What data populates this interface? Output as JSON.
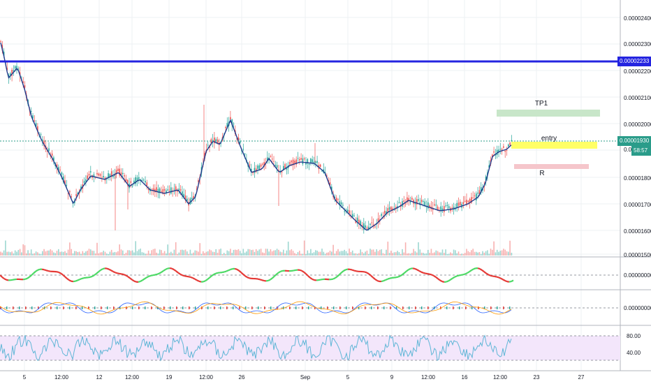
{
  "chart": {
    "price_ticks": [
      "0.00002400",
      "0.00002300",
      "0.00002200",
      "0.00002100",
      "0.00002000",
      "0.00001800",
      "0.00001700",
      "0.00001600",
      "0.00001500"
    ],
    "level_badge": "0.00002233",
    "last_price_badge": "0.00001930",
    "last_price_hidden_tail": "0.0000",
    "countdown": "58:57",
    "time_labels": [
      "5",
      "12:00",
      "12",
      "12:00",
      "19",
      "12:00",
      "26",
      "Sep",
      "5",
      "9",
      "12:00",
      "16",
      "12:00",
      "23",
      "27"
    ],
    "annotations": {
      "tp": "TP1",
      "entry": "entry",
      "risk": "R"
    },
    "ind1_value": "0.00000000",
    "ind2_value": "0.00000000",
    "rsi_ticks": [
      "80.00",
      "40.00"
    ]
  },
  "colors": {
    "level_line": "#2424e0",
    "ma_line": "#1f3b8c",
    "up_candle": "#26a69a",
    "down_candle": "#ef5350",
    "tp_zone": "#c8e6c9",
    "entry_zone": "#ffff66",
    "risk_zone": "#f5c6cb",
    "rsi_band": "#f3e6fb",
    "rsi_line": "#5fb6d6"
  }
}
